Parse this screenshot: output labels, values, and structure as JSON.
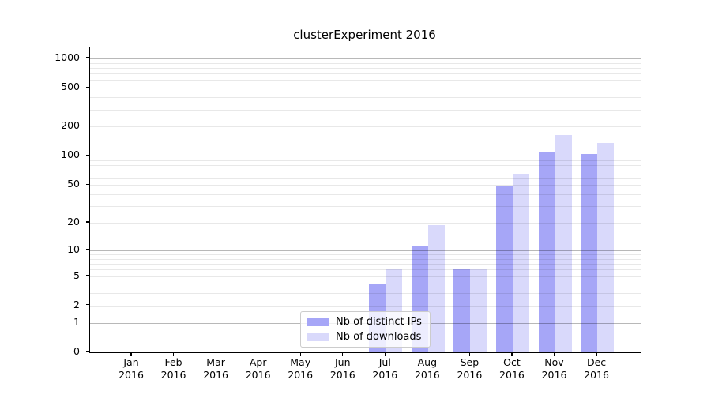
{
  "title": "clusterExperiment 2016",
  "chart_data": {
    "type": "bar",
    "title": "clusterExperiment 2016",
    "x_categories": [
      "Jan",
      "Feb",
      "Mar",
      "Apr",
      "May",
      "Jun",
      "Jul",
      "Aug",
      "Sep",
      "Oct",
      "Nov",
      "Dec"
    ],
    "x_year": "2016",
    "series": [
      {
        "name": "Nb of distinct IPs",
        "color": "#a6a6f7",
        "values": [
          0,
          0,
          0,
          0,
          0,
          0,
          4,
          11,
          6,
          48,
          111,
          105
        ]
      },
      {
        "name": "Nb of downloads",
        "color": "#d9d9fb",
        "values": [
          0,
          0,
          0,
          0,
          0,
          0,
          6,
          19,
          6,
          65,
          164,
          136
        ]
      }
    ],
    "yscale": "log1p",
    "ylim": [
      0,
      1296
    ],
    "yticks": [
      0,
      1,
      2,
      5,
      10,
      20,
      50,
      100,
      200,
      500,
      1000
    ],
    "grid_major": [
      1,
      10,
      100,
      1000
    ],
    "grid_minor": [
      2,
      3,
      4,
      5,
      6,
      7,
      8,
      9,
      20,
      30,
      40,
      50,
      60,
      70,
      80,
      90,
      200,
      300,
      400,
      500,
      600,
      700,
      800,
      900
    ],
    "legend_position": "lower center-left",
    "grid": true
  },
  "colors": {
    "bar_ips": "#a6a6f7",
    "bar_downloads": "#d9d9fb",
    "grid_major": "rgba(0,0,0,0.28)",
    "grid_minor": "rgba(0,0,0,0.09)",
    "legend_border": "#cccccc",
    "axis": "#000000"
  }
}
